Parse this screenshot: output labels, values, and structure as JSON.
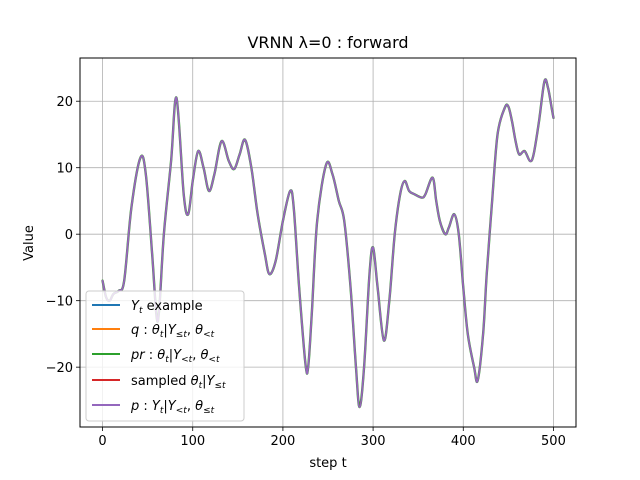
{
  "chart_data": {
    "type": "line",
    "title": "VRNN λ=0 : forward",
    "xlabel": "step t",
    "ylabel": "Value",
    "xlim": [
      -25,
      525
    ],
    "ylim": [
      -29,
      26.5
    ],
    "grid": true,
    "legend_position": "lower-left",
    "xticks": [
      0,
      100,
      200,
      300,
      400,
      500
    ],
    "yticks": [
      -20,
      -10,
      0,
      10,
      20
    ],
    "xtick_labels": [
      "0",
      "100",
      "200",
      "300",
      "400",
      "500"
    ],
    "ytick_labels": [
      "−20",
      "−10",
      "0",
      "10",
      "20"
    ],
    "knots": [
      [
        0,
        -7
      ],
      [
        4,
        -9.5
      ],
      [
        8,
        -10
      ],
      [
        12,
        -9
      ],
      [
        18,
        -8.5
      ],
      [
        24,
        -7
      ],
      [
        32,
        4
      ],
      [
        42,
        11.5
      ],
      [
        48,
        9
      ],
      [
        55,
        -3
      ],
      [
        60,
        -12.5
      ],
      [
        63,
        -11
      ],
      [
        68,
        0
      ],
      [
        76,
        11
      ],
      [
        82,
        20.5
      ],
      [
        90,
        6
      ],
      [
        95,
        3
      ],
      [
        100,
        8
      ],
      [
        106,
        12.5
      ],
      [
        112,
        10
      ],
      [
        118,
        6.5
      ],
      [
        124,
        9
      ],
      [
        132,
        14
      ],
      [
        140,
        11
      ],
      [
        146,
        9.8
      ],
      [
        152,
        12
      ],
      [
        158,
        14.2
      ],
      [
        165,
        10
      ],
      [
        172,
        3
      ],
      [
        180,
        -3
      ],
      [
        185,
        -6
      ],
      [
        192,
        -4
      ],
      [
        200,
        2
      ],
      [
        208,
        6.5
      ],
      [
        212,
        4
      ],
      [
        218,
        -8
      ],
      [
        225,
        -19.5
      ],
      [
        228,
        -20
      ],
      [
        232,
        -12
      ],
      [
        238,
        2
      ],
      [
        248,
        10.5
      ],
      [
        255,
        9
      ],
      [
        262,
        5
      ],
      [
        268,
        2
      ],
      [
        275,
        -8
      ],
      [
        281,
        -20
      ],
      [
        285,
        -26
      ],
      [
        290,
        -20
      ],
      [
        296,
        -6
      ],
      [
        300,
        -2
      ],
      [
        305,
        -8
      ],
      [
        312,
        -16
      ],
      [
        318,
        -10
      ],
      [
        324,
        0
      ],
      [
        330,
        6
      ],
      [
        335,
        8
      ],
      [
        340,
        6.5
      ],
      [
        346,
        6
      ],
      [
        354,
        5.5
      ],
      [
        358,
        6
      ],
      [
        366,
        8.5
      ],
      [
        370,
        5
      ],
      [
        374,
        2
      ],
      [
        380,
        0
      ],
      [
        384,
        1
      ],
      [
        390,
        3
      ],
      [
        395,
        0
      ],
      [
        400,
        -8
      ],
      [
        405,
        -15
      ],
      [
        412,
        -20
      ],
      [
        416,
        -22
      ],
      [
        422,
        -15
      ],
      [
        426,
        -6
      ],
      [
        432,
        5
      ],
      [
        438,
        15
      ],
      [
        446,
        19
      ],
      [
        450,
        19.2
      ],
      [
        454,
        17
      ],
      [
        458,
        14
      ],
      [
        462,
        12
      ],
      [
        468,
        12.5
      ],
      [
        474,
        11
      ],
      [
        478,
        12
      ],
      [
        484,
        17
      ],
      [
        490,
        23
      ],
      [
        494,
        22
      ],
      [
        498,
        19
      ],
      [
        500,
        17.5
      ]
    ],
    "series": [
      {
        "name": "$Y_t$ example",
        "color": "#1f77b4",
        "legend_label": "Y_t example"
      },
      {
        "name": "$q$ : $\\theta_t|Y_{\\leq t}, \\theta_{<t}$",
        "color": "#ff7f0e",
        "legend_label": "q : θ_t|Y_≤t, θ_<t"
      },
      {
        "name": "$pr$ : $\\theta_t|Y_{<t}, \\theta_{<t}$",
        "color": "#2ca02c",
        "legend_label": "pr : θ_t|Y_<t, θ_<t"
      },
      {
        "name": "sampled $\\theta_t|Y_{\\leq t}$",
        "color": "#d62728",
        "legend_label": "sampled θ_t|Y_≤t"
      },
      {
        "name": "$p$ : $Y_t|Y_{<t}, \\theta_{\\leq t}$",
        "color": "#9467bd",
        "legend_label": "p : Y_t|Y_<t, θ_≤t"
      }
    ]
  }
}
